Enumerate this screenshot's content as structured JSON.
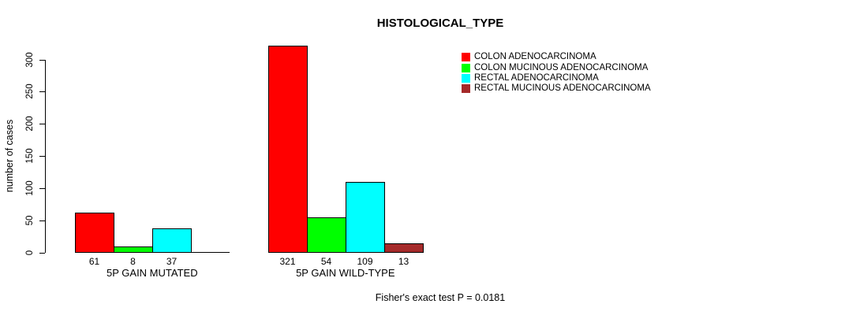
{
  "title": "HISTOLOGICAL_TYPE",
  "footer": "Fisher's exact test P = 0.0181",
  "colors": {
    "colon_adenocarcinoma": "#FF0000",
    "colon_mucinous_adenocarcinoma": "#00FF00",
    "rectal_adenocarcinoma": "#00FFFF",
    "rectal_mucinous_adenocarcinoma": "#A52A2A",
    "axis": "#000000",
    "background": "#FFFFFF"
  },
  "legend": [
    {
      "label": "COLON ADENOCARCINOMA",
      "color": "#FF0000"
    },
    {
      "label": "COLON MUCINOUS ADENOCARCINOMA",
      "color": "#00FF00"
    },
    {
      "label": "RECTAL ADENOCARCINOMA",
      "color": "#00FFFF"
    },
    {
      "label": "RECTAL MUCINOUS ADENOCARCINOMA",
      "color": "#A52A2A"
    }
  ],
  "chart_data": {
    "type": "bar",
    "title": "HISTOLOGICAL_TYPE",
    "xlabel": "",
    "ylabel": "number of cases",
    "ylim": [
      0,
      300
    ],
    "yticks": [
      0,
      50,
      100,
      150,
      200,
      250,
      300
    ],
    "categories": [
      "5P GAIN MUTATED",
      "5P GAIN WILD-TYPE"
    ],
    "series": [
      {
        "name": "COLON ADENOCARCINOMA",
        "color": "#FF0000",
        "values": [
          61,
          321
        ]
      },
      {
        "name": "COLON MUCINOUS ADENOCARCINOMA",
        "color": "#00FF00",
        "values": [
          8,
          54
        ]
      },
      {
        "name": "RECTAL ADENOCARCINOMA",
        "color": "#00FFFF",
        "values": [
          37,
          109
        ]
      },
      {
        "name": "RECTAL MUCINOUS ADENOCARCINOMA",
        "color": "#A52A2A",
        "values": [
          0,
          13
        ]
      }
    ],
    "bar_value_labels": [
      [
        "61",
        "8",
        "37",
        ""
      ],
      [
        "321",
        "54",
        "109",
        "13"
      ]
    ],
    "annotation": "Fisher's exact test P = 0.0181",
    "legend_position": "top-right",
    "grid": false,
    "y_tick_labels_rotated": true
  }
}
